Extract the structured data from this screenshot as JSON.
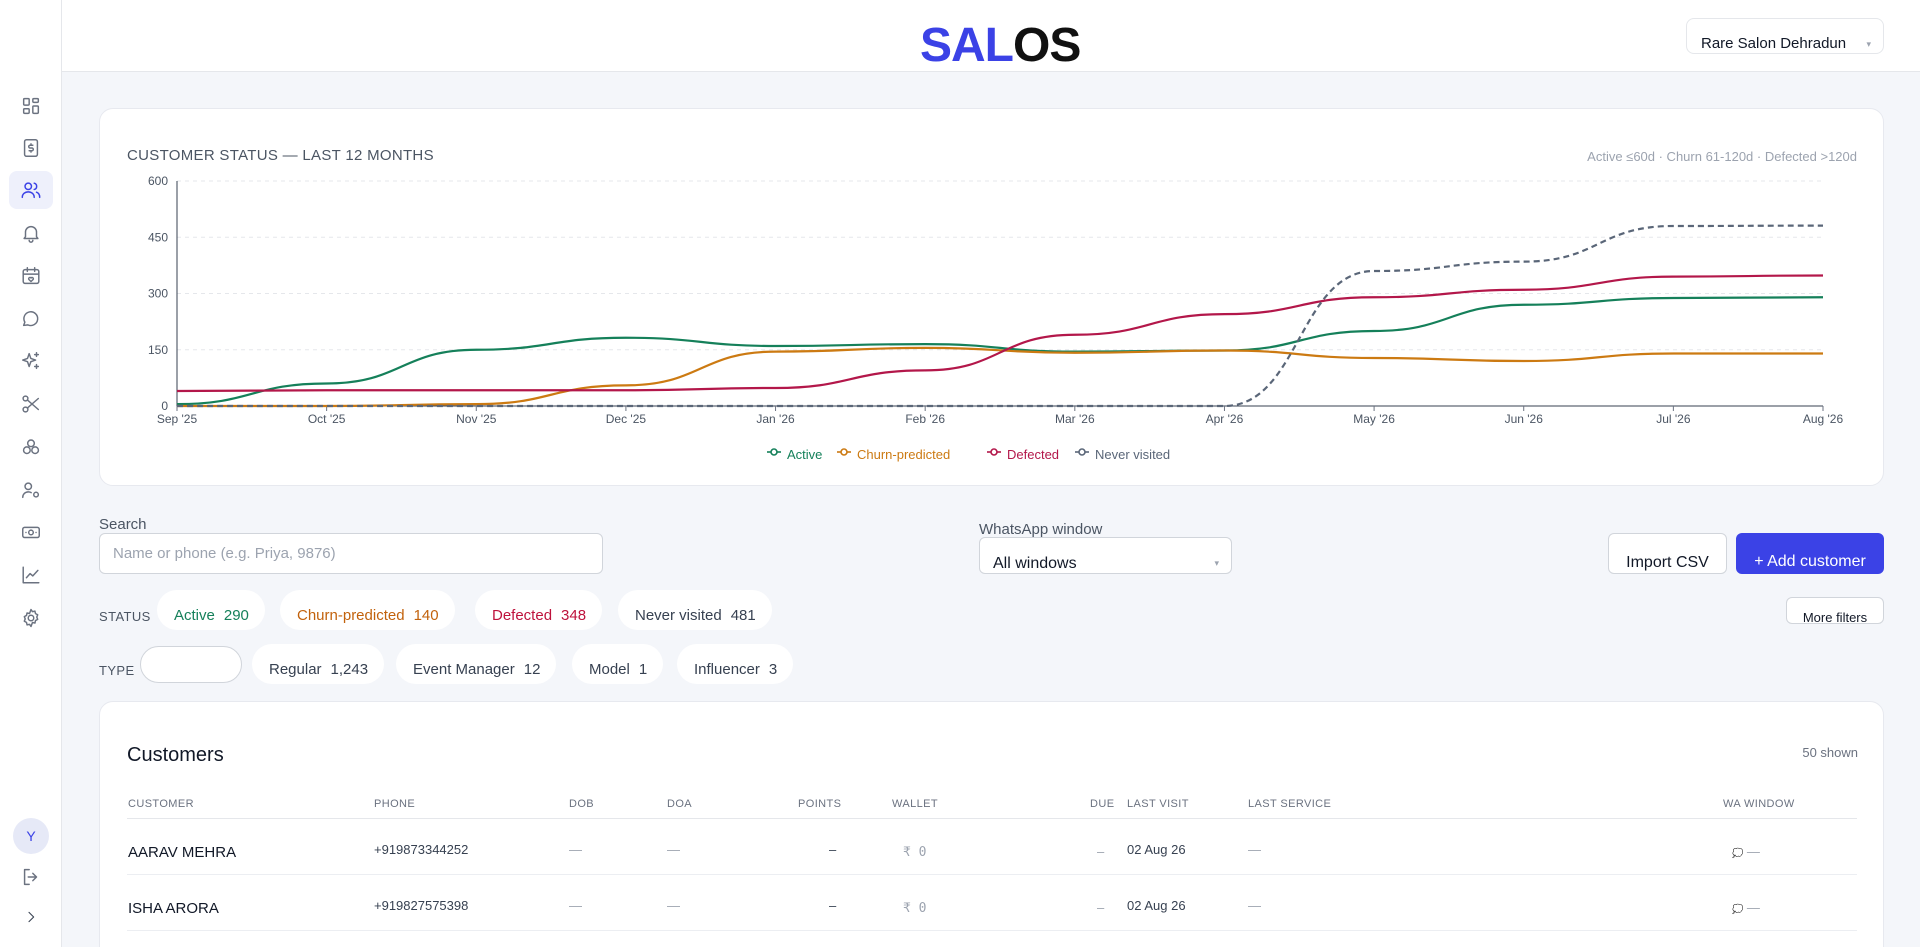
{
  "brand": {
    "part1": "SAL",
    "part2": "OS"
  },
  "salon_select": {
    "value": "Rare Salon Dehradun"
  },
  "sidebar": {
    "items": [
      {
        "name": "dashboard",
        "icon": "grid-icon"
      },
      {
        "name": "billing",
        "icon": "invoice-icon"
      },
      {
        "name": "customers",
        "icon": "users-icon",
        "active": true
      },
      {
        "name": "notifications",
        "icon": "bell-icon"
      },
      {
        "name": "appointments",
        "icon": "calendar-heart-icon"
      },
      {
        "name": "messages",
        "icon": "chat-icon"
      },
      {
        "name": "campaigns",
        "icon": "sparkles-icon"
      },
      {
        "name": "services",
        "icon": "scissors-icon"
      },
      {
        "name": "products",
        "icon": "boxes-icon"
      },
      {
        "name": "staff",
        "icon": "user-gear-icon"
      },
      {
        "name": "payments",
        "icon": "cash-icon"
      },
      {
        "name": "reports",
        "icon": "line-chart-icon"
      },
      {
        "name": "settings",
        "icon": "gear-icon"
      }
    ],
    "avatar": "Y"
  },
  "chart": {
    "title": "CUSTOMER STATUS — LAST 12 MONTHS",
    "note": "Active ≤60d · Churn 61-120d · Defected >120d"
  },
  "chart_data": {
    "type": "line",
    "x": [
      "Sep '25",
      "Oct '25",
      "Nov '25",
      "Dec '25",
      "Jan '26",
      "Feb '26",
      "Mar '26",
      "Apr '26",
      "May '26",
      "Jun '26",
      "Jul '26",
      "Aug '26"
    ],
    "ylim": [
      0,
      600
    ],
    "yticks": [
      0,
      150,
      300,
      450,
      600
    ],
    "grid": true,
    "legend": "bottom-center",
    "series": [
      {
        "name": "Active",
        "color": "#15805a",
        "dashed": false,
        "values": [
          5,
          60,
          150,
          182,
          160,
          165,
          145,
          148,
          200,
          270,
          288,
          290
        ]
      },
      {
        "name": "Churn-predicted",
        "color": "#cc7a12",
        "dashed": false,
        "values": [
          0,
          0,
          5,
          55,
          145,
          155,
          142,
          148,
          128,
          120,
          140,
          140
        ]
      },
      {
        "name": "Defected",
        "color": "#b3174a",
        "dashed": false,
        "values": [
          40,
          42,
          42,
          42,
          48,
          95,
          190,
          245,
          290,
          310,
          345,
          348
        ]
      },
      {
        "name": "Never visited",
        "color": "#5a6678",
        "dashed": true,
        "values": [
          0,
          0,
          0,
          0,
          0,
          0,
          0,
          0,
          360,
          385,
          480,
          481
        ]
      }
    ]
  },
  "filters": {
    "search_label": "Search",
    "search_placeholder": "Name or phone (e.g. Priya, 9876)",
    "wa_label": "WhatsApp window",
    "wa_value": "All windows",
    "import_label": "Import CSV",
    "add_label": "+ Add customer",
    "more_label": "More filters",
    "status_label": "STATUS",
    "type_label": "TYPE",
    "status_chips": [
      {
        "label": "Active",
        "count": "290",
        "color": "#15805a"
      },
      {
        "label": "Churn-predicted",
        "count": "140",
        "color": "#c2620c"
      },
      {
        "label": "Defected",
        "count": "348",
        "color": "#be123c"
      },
      {
        "label": "Never visited",
        "count": "481",
        "color": "#374151"
      }
    ],
    "type_chips": [
      {
        "label": "Regular",
        "count": "1,243"
      },
      {
        "label": "Event Manager",
        "count": "12"
      },
      {
        "label": "Model",
        "count": "1"
      },
      {
        "label": "Influencer",
        "count": "3"
      }
    ]
  },
  "customers": {
    "title": "Customers",
    "count_label": "50 shown",
    "columns": [
      "CUSTOMER",
      "PHONE",
      "DOB",
      "DOA",
      "POINTS",
      "WALLET",
      "DUE",
      "LAST VISIT",
      "LAST SERVICE",
      "WA WINDOW"
    ],
    "rows": [
      {
        "name": "AARAV MEHRA",
        "phone": "+919873344252",
        "dob": "—",
        "doa": "—",
        "points": "–",
        "wallet": "₹ 0",
        "due": "–",
        "last_visit": "02 Aug 26",
        "last_service": "—",
        "wa": "—"
      },
      {
        "name": "ISHA ARORA",
        "phone": "+919827575398",
        "dob": "—",
        "doa": "—",
        "points": "–",
        "wallet": "₹ 0",
        "due": "–",
        "last_visit": "02 Aug 26",
        "last_service": "—",
        "wa": "—"
      }
    ]
  }
}
